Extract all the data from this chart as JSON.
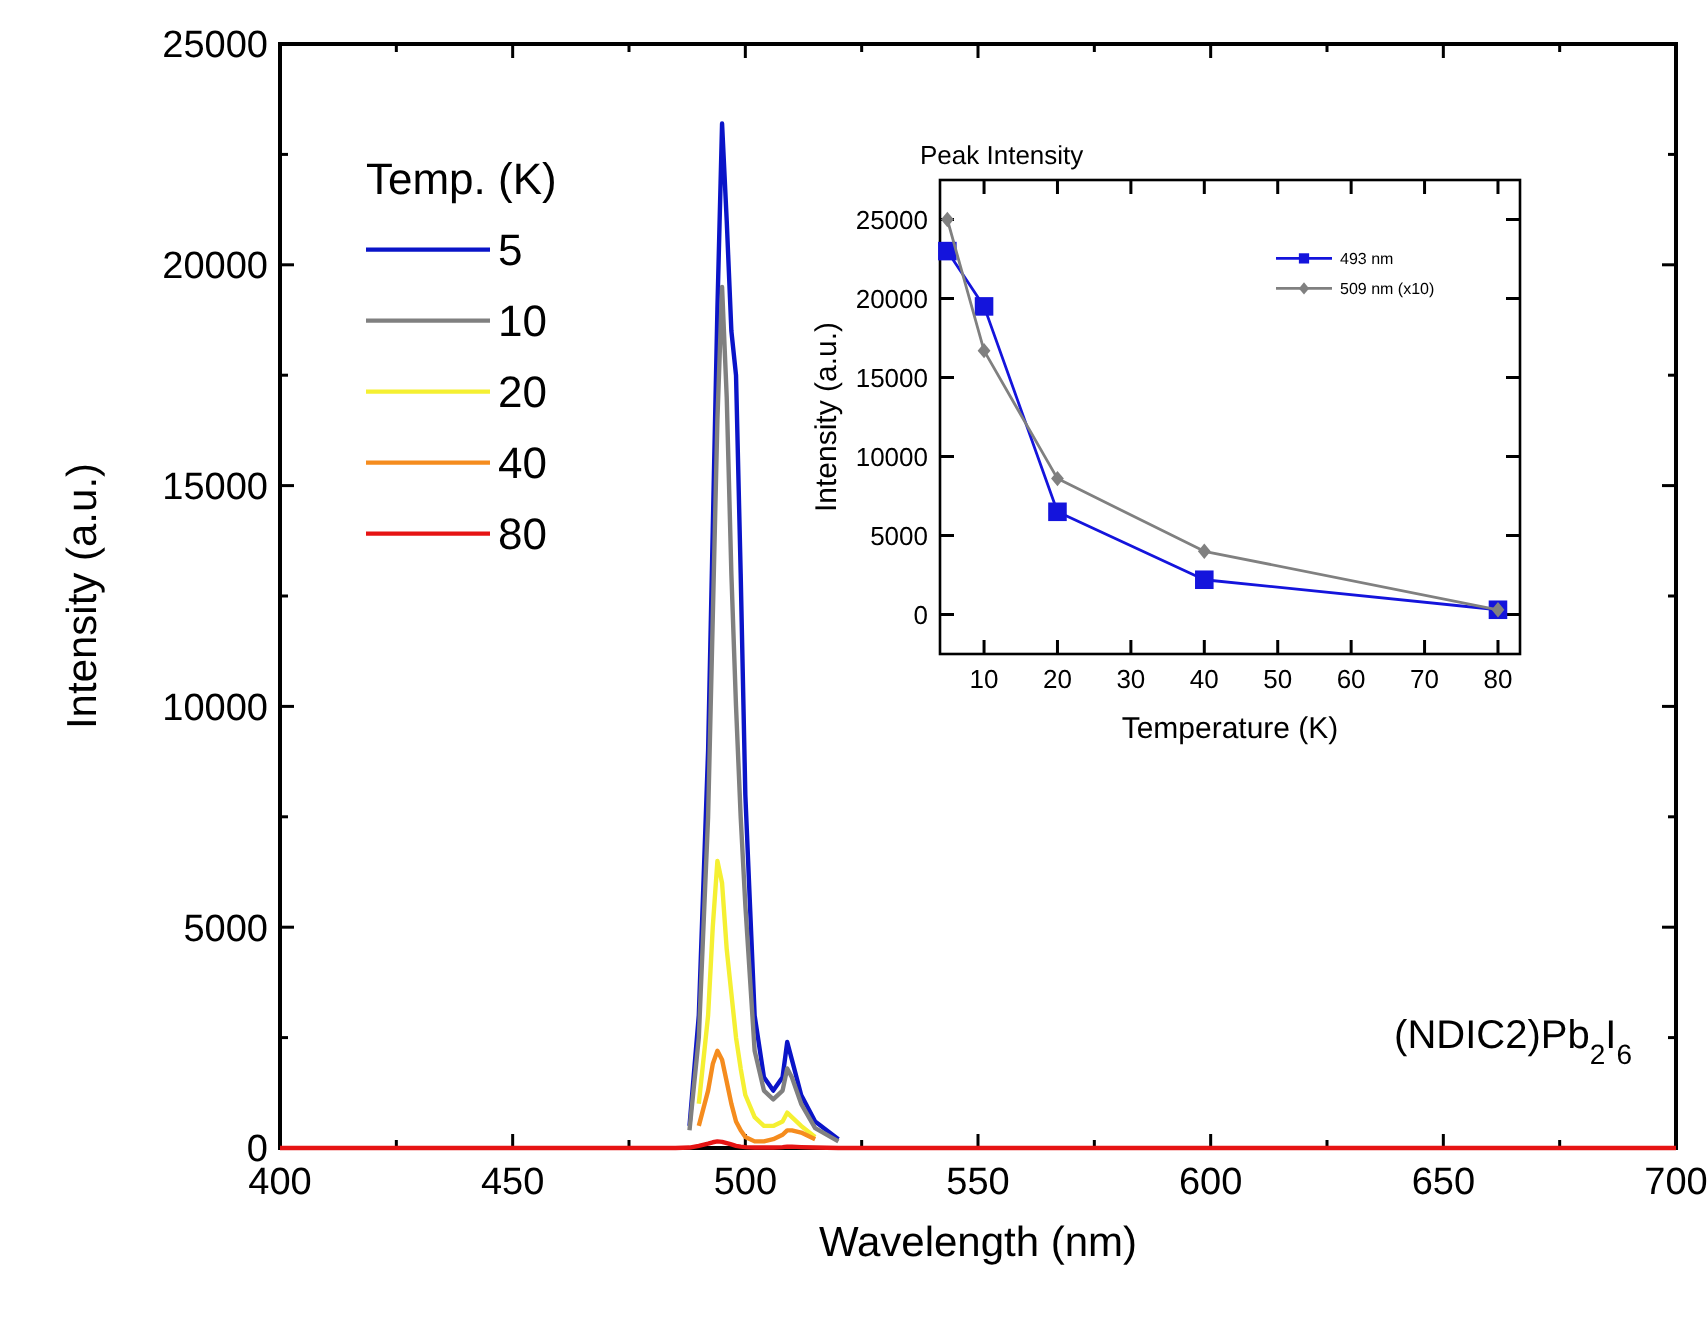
{
  "chart_data": [
    {
      "type": "line",
      "xlabel": "Wavelength (nm)",
      "ylabel": "Intensity (a.u.)",
      "legend_title": "Temp. (K)",
      "legend": "top left",
      "annotations": [
        "(NDIC2)Pb$_{2}$I$_{6}$"
      ],
      "series": [
        {
          "name": "5",
          "color": "#0a14c8",
          "x": [
            488,
            490,
            492,
            493,
            494,
            495,
            496,
            497,
            498,
            499,
            500,
            502,
            504,
            506,
            508,
            509,
            510,
            512,
            515,
            520
          ],
          "values": [
            500,
            3000,
            9000,
            14000,
            19000,
            23200,
            21000,
            18500,
            17500,
            13000,
            8000,
            3000,
            1600,
            1300,
            1600,
            2400,
            2000,
            1200,
            600,
            200
          ]
        },
        {
          "name": "10",
          "color": "#808080",
          "x": [
            488,
            490,
            492,
            493,
            494,
            495,
            496,
            497,
            498,
            499,
            500,
            502,
            504,
            506,
            508,
            509,
            510,
            512,
            515,
            520
          ],
          "values": [
            400,
            2500,
            7500,
            12000,
            16500,
            19500,
            17000,
            13000,
            10000,
            7500,
            5500,
            2200,
            1300,
            1100,
            1300,
            1800,
            1600,
            1000,
            450,
            150
          ]
        },
        {
          "name": "20",
          "color": "#f5f032",
          "x": [
            490,
            492,
            493,
            494,
            495,
            496,
            497,
            498,
            499,
            500,
            502,
            504,
            506,
            508,
            509,
            510,
            512,
            515
          ],
          "values": [
            1000,
            3000,
            5000,
            6500,
            6000,
            4500,
            3500,
            2500,
            1800,
            1200,
            700,
            500,
            500,
            600,
            800,
            700,
            500,
            250
          ]
        },
        {
          "name": "40",
          "color": "#f58c1e",
          "x": [
            490,
            492,
            493,
            494,
            495,
            496,
            497,
            498,
            499,
            500,
            502,
            504,
            506,
            508,
            509,
            510,
            512,
            515
          ],
          "values": [
            500,
            1300,
            1900,
            2200,
            2000,
            1500,
            1000,
            600,
            400,
            250,
            150,
            150,
            200,
            300,
            400,
            400,
            350,
            200
          ]
        },
        {
          "name": "80",
          "color": "#e61414",
          "x": [
            400,
            450,
            480,
            485,
            488,
            490,
            492,
            493,
            494,
            495,
            496,
            497,
            498,
            499,
            500,
            502,
            504,
            506,
            508,
            509,
            510,
            512,
            515,
            520,
            530,
            550,
            600,
            650,
            700
          ],
          "values": [
            0,
            0,
            0,
            0,
            10,
            50,
            100,
            130,
            150,
            140,
            110,
            80,
            50,
            30,
            20,
            10,
            10,
            10,
            20,
            30,
            30,
            20,
            10,
            0,
            0,
            0,
            0,
            0,
            0
          ]
        }
      ],
      "xlim": [
        400,
        700
      ],
      "xticks": [
        400,
        {
          "value": 425,
          "label": null
        },
        450,
        {
          "value": 475,
          "label": null
        },
        500,
        {
          "value": 525,
          "label": null
        },
        550,
        {
          "value": 575,
          "label": null
        },
        600,
        {
          "value": 625,
          "label": null
        },
        650,
        {
          "value": 675,
          "label": null
        },
        700
      ],
      "ylim": [
        0,
        25000
      ],
      "yticks": [
        0,
        {
          "value": 2500,
          "label": null
        },
        5000,
        {
          "value": 7500,
          "label": null
        },
        10000,
        {
          "value": 12500,
          "label": null
        },
        15000,
        {
          "value": 17500,
          "label": null
        },
        20000,
        {
          "value": 22500,
          "label": null
        },
        25000
      ]
    },
    {
      "type": "line",
      "title": "Peak Intensity",
      "xlabel": "Temperature (K)",
      "ylabel": "Intensity (a.u.)",
      "legend": "top right",
      "x": [
        5,
        10,
        20,
        40,
        80
      ],
      "series": [
        {
          "name": "493 nm",
          "color": "#1414dc",
          "marker": "square",
          "values": [
            23000,
            19500,
            6500,
            2200,
            300
          ]
        },
        {
          "name": "509 nm (x10)",
          "color": "#808080",
          "marker": "diamond",
          "values": [
            25000,
            16700,
            8600,
            4000,
            300
          ]
        }
      ],
      "xlim": [
        4,
        83
      ],
      "xticks": [
        10,
        20,
        30,
        40,
        50,
        60,
        70,
        80
      ],
      "ylim": [
        -2500,
        27500
      ],
      "yticks": [
        0,
        5000,
        10000,
        15000,
        20000,
        25000
      ]
    }
  ]
}
